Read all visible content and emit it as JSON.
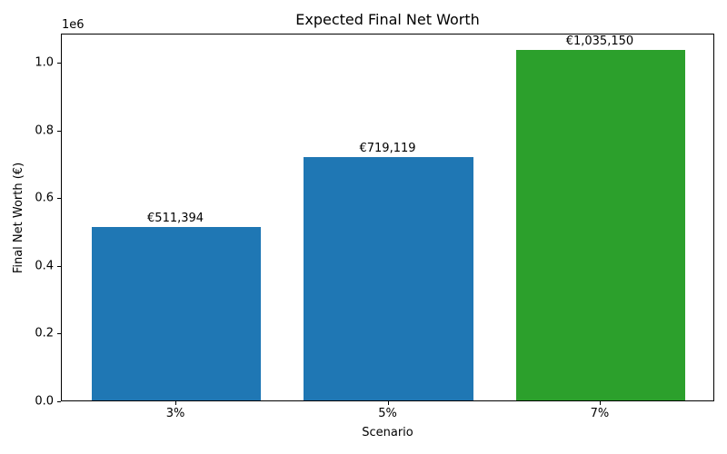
{
  "chart_data": {
    "type": "bar",
    "title": "Expected Final Net Worth",
    "xlabel": "Scenario",
    "ylabel": "Final Net Worth (€)",
    "categories": [
      "3%",
      "5%",
      "7%"
    ],
    "values": [
      511394,
      719119,
      1035150
    ],
    "bar_labels": [
      "€511,394",
      "€719,119",
      "€1,035,150"
    ],
    "bar_colors": [
      "#1f77b4",
      "#1f77b4",
      "#2ca02c"
    ],
    "ylim": [
      0,
      1086907
    ],
    "yticks": [
      0,
      200000,
      400000,
      600000,
      800000,
      1000000
    ],
    "ytick_labels": [
      "0.0",
      "0.2",
      "0.4",
      "0.6",
      "0.8",
      "1.0"
    ],
    "y_offset_label": "1e6",
    "grid": false,
    "legend": null,
    "plot_background": "#ffffff",
    "spine_color": "#000000",
    "text_color": "#000000"
  }
}
